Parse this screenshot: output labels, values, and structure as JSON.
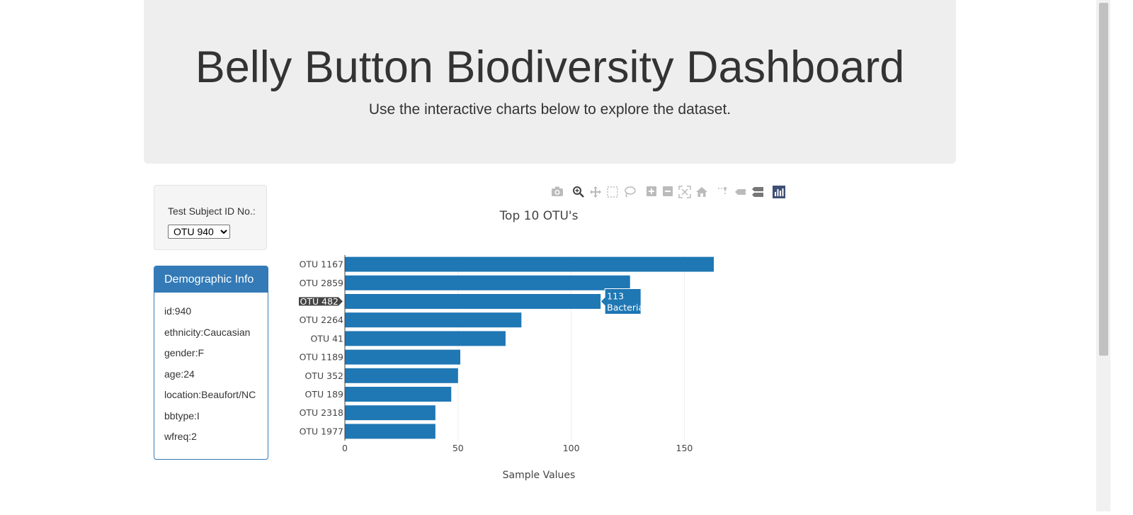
{
  "header": {
    "title": "Belly Button Biodiversity Dashboard",
    "subtitle": "Use the interactive charts below to explore the dataset."
  },
  "selector": {
    "label": "Test Subject ID No.:",
    "selected": "OTU 940"
  },
  "demographics": {
    "title": "Demographic Info",
    "rows": [
      "id:940",
      "ethnicity:Caucasian",
      "gender:F",
      "age:24",
      "location:Beaufort/NC",
      "bbtype:I",
      "wfreq:2"
    ]
  },
  "modebar": {
    "icons": [
      "camera-icon",
      "zoom-icon",
      "pan-icon",
      "box-select-icon",
      "lasso-icon",
      "zoom-in-icon",
      "zoom-out-icon",
      "autoscale-icon",
      "reset-axes-icon",
      "spike-lines-icon",
      "hover-closest-icon",
      "hover-compare-icon",
      "plotly-logo-icon"
    ]
  },
  "colors": {
    "bar": "#1f77b4",
    "panel_primary": "#337ab7",
    "jumbotron": "#eeeeee"
  },
  "chart_data": {
    "type": "bar",
    "orientation": "horizontal",
    "title": "Top 10 OTU's",
    "xlabel": "Sample Values",
    "ylabel": "",
    "categories": [
      "OTU 1167",
      "OTU 2859",
      "OTU 482",
      "OTU 2264",
      "OTU 41",
      "OTU 1189",
      "OTU 352",
      "OTU 189",
      "OTU 2318",
      "OTU 1977"
    ],
    "values": [
      163,
      126,
      113,
      78,
      71,
      51,
      50,
      47,
      40,
      40
    ],
    "xlim": [
      0,
      163
    ],
    "xticks": [
      0,
      50,
      100,
      150
    ],
    "grid": true,
    "tooltip": {
      "category": "OTU 482",
      "value_label": "113",
      "text": "Bacteria"
    }
  }
}
